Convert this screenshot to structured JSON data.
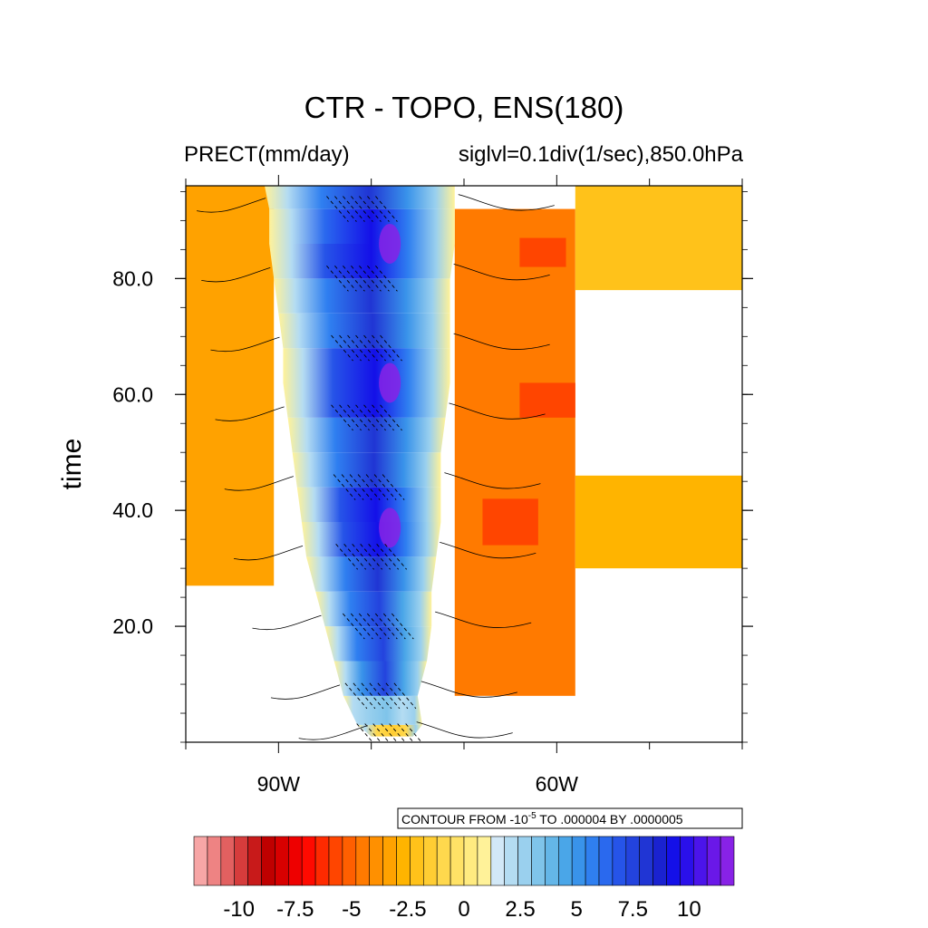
{
  "chart_data": {
    "type": "heatmap",
    "title": "CTR - TOPO, ENS(180)",
    "subtitle_left": "PRECT(mm/day)",
    "subtitle_right": "siglvl=0.1div(1/sec),850.0hPa",
    "ylabel": "time",
    "xlabel": "",
    "x_axis": {
      "range_deg_east": [
        -100,
        -40
      ],
      "tick_labels": [
        "90W",
        "60W"
      ],
      "tick_values": [
        -90,
        -60
      ]
    },
    "y_axis": {
      "range": [
        0,
        96
      ],
      "tick_labels": [
        "20.0",
        "40.0",
        "60.0",
        "80.0"
      ],
      "tick_values": [
        20,
        40,
        60,
        80
      ]
    },
    "contour_info": "CONTOUR FROM -10^-5 TO .000004 BY .0000005",
    "contour_info_parts": [
      "CONTOUR FROM -10",
      "-5",
      " TO .000004 BY .0000005"
    ],
    "colorbar": {
      "range": [
        -12,
        12
      ],
      "tick_labels": [
        "-10",
        "-7.5",
        "-5",
        "-2.5",
        "0",
        "2.5",
        "5",
        "7.5",
        "10"
      ],
      "tick_values": [
        -10,
        -7.5,
        -5,
        -2.5,
        0,
        2.5,
        5,
        7.5,
        10
      ],
      "colors": [
        "#f7a6a6",
        "#ee8383",
        "#e26060",
        "#d63c3c",
        "#c81a1a",
        "#bf0000",
        "#d80000",
        "#ee0000",
        "#ff0a00",
        "#ff2a00",
        "#ff4500",
        "#ff5f00",
        "#ff7a00",
        "#ff9000",
        "#ffa200",
        "#ffb400",
        "#ffc21a",
        "#ffcd33",
        "#ffd84d",
        "#ffe266",
        "#ffeb80",
        "#fff299",
        "#d2e8f7",
        "#b4dcf2",
        "#9ad0ee",
        "#7fc4ea",
        "#64b6e8",
        "#4aa6e8",
        "#3993ea",
        "#2f7ff0",
        "#2a69ee",
        "#2654e8",
        "#2343de",
        "#2035d4",
        "#1a22d0",
        "#1410e8",
        "#2a10ea",
        "#4b14ea",
        "#6a18e8",
        "#8822e6"
      ]
    },
    "precip_band": {
      "description_free": true,
      "rows": [
        {
          "t": 1,
          "west": -80.0,
          "east": -75.5,
          "value": -3.5
        },
        {
          "t": 3,
          "west": -81.5,
          "east": -74.5,
          "value": 0.5
        },
        {
          "t": 8,
          "west": -83.0,
          "east": -75.0,
          "value": 6.5
        },
        {
          "t": 14,
          "west": -84.0,
          "east": -74.0,
          "value": 8.0
        },
        {
          "t": 20,
          "west": -85.0,
          "east": -73.5,
          "value": 7.5
        },
        {
          "t": 26,
          "west": -86.0,
          "east": -73.5,
          "value": 8.0
        },
        {
          "t": 32,
          "west": -87.0,
          "east": -73.0,
          "value": 8.5
        },
        {
          "t": 38,
          "west": -87.5,
          "east": -72.5,
          "value": 10.5
        },
        {
          "t": 44,
          "west": -88.0,
          "east": -72.5,
          "value": 8.5
        },
        {
          "t": 50,
          "west": -88.5,
          "east": -72.5,
          "value": 8.0
        },
        {
          "t": 56,
          "west": -89.0,
          "east": -72.0,
          "value": 8.5
        },
        {
          "t": 62,
          "west": -89.5,
          "east": -71.5,
          "value": 10.5
        },
        {
          "t": 68,
          "west": -89.5,
          "east": -71.5,
          "value": 8.5
        },
        {
          "t": 74,
          "west": -90.0,
          "east": -71.5,
          "value": 8.0
        },
        {
          "t": 80,
          "west": -90.5,
          "east": -71.5,
          "value": 8.5
        },
        {
          "t": 86,
          "west": -91.0,
          "east": -71.0,
          "value": 10.5
        },
        {
          "t": 92,
          "west": -91.0,
          "east": -71.0,
          "value": 8.0
        },
        {
          "t": 96,
          "west": -91.5,
          "east": -71.0,
          "value": 8.0
        }
      ],
      "maxima": [
        {
          "lon": -78.0,
          "t": 37,
          "value": 11.5
        },
        {
          "lon": -78.0,
          "t": 62,
          "value": 11.5
        },
        {
          "lon": -78.0,
          "t": 86,
          "value": 11.5
        }
      ]
    },
    "dry_regions": [
      {
        "lon_min": -100,
        "lon_max": -90.5,
        "t_min": 27,
        "t_max": 96,
        "value": -3.5
      },
      {
        "lon_min": -71,
        "lon_max": -58,
        "t_min": 8,
        "t_max": 92,
        "value": -4.5
      },
      {
        "lon_min": -58,
        "lon_max": -40,
        "t_min": 30,
        "t_max": 46,
        "value": -2.5
      },
      {
        "lon_min": -58,
        "lon_max": -40,
        "t_min": 78,
        "t_max": 96,
        "value": -2.0
      },
      {
        "lon_min": -68,
        "lon_max": -62,
        "t_min": 34,
        "t_max": 42,
        "value": -6.0
      },
      {
        "lon_min": -64,
        "lon_max": -58,
        "t_min": 56,
        "t_max": 62,
        "value": -6.0
      },
      {
        "lon_min": -64,
        "lon_max": -59,
        "t_min": 82,
        "t_max": 87,
        "value": -6.0
      }
    ]
  }
}
